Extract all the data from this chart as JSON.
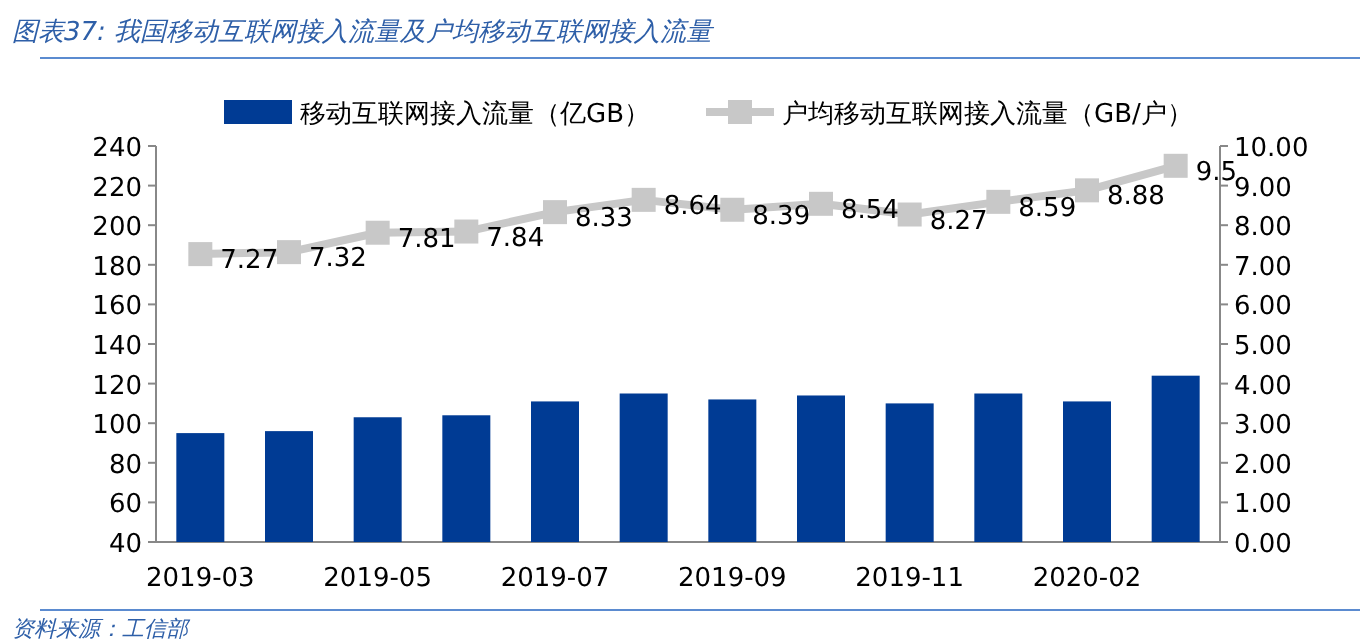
{
  "chart_data": {
    "type": "bar",
    "title": "图表37: 我国移动互联网接入流量及户均移动互联网接入流量",
    "categories": [
      "2019-03",
      null,
      "2019-05",
      null,
      "2019-07",
      null,
      "2019-09",
      null,
      "2019-11",
      null,
      "2020-02",
      null
    ],
    "series": [
      {
        "name": "移动互联网接入流量（亿GB）",
        "color": "#003b94",
        "values": [
          95,
          96,
          103,
          104,
          111,
          115,
          112,
          114,
          110,
          115,
          111,
          124
        ]
      },
      {
        "name": "户均移动互联网接入流量（GB/户）",
        "type": "line",
        "axis": "y2",
        "color": "#c8c8c8",
        "values": [
          7.27,
          7.32,
          7.81,
          7.84,
          8.33,
          8.64,
          8.39,
          8.54,
          8.27,
          8.59,
          8.88,
          9.5
        ],
        "value_labels": [
          "7.27",
          "7.32",
          "7.81",
          "7.84",
          "8.33",
          "8.64",
          "8.39",
          "8.54",
          "8.27",
          "8.59",
          "8.88",
          "9.5"
        ]
      }
    ],
    "ylim": [
      40,
      240
    ],
    "yticks": [
      40,
      60,
      80,
      100,
      120,
      140,
      160,
      180,
      200,
      220,
      240
    ],
    "y2lim": [
      0,
      10
    ],
    "y2ticks": [
      {
        "value": 0,
        "label": "0.00"
      },
      {
        "value": 1,
        "label": "1.00"
      },
      {
        "value": 2,
        "label": "2.00"
      },
      {
        "value": 3,
        "label": "3.00"
      },
      {
        "value": 4,
        "label": "4.00"
      },
      {
        "value": 5,
        "label": "5.00"
      },
      {
        "value": 6,
        "label": "6.00"
      },
      {
        "value": 7,
        "label": "7.00"
      },
      {
        "value": 8,
        "label": "8.00"
      },
      {
        "value": 9,
        "label": "9.00"
      },
      {
        "value": 10,
        "label": "10.00"
      }
    ],
    "marker": "square",
    "legend": "top",
    "grid": false,
    "annotations": [
      "资料来源：工信部"
    ]
  }
}
